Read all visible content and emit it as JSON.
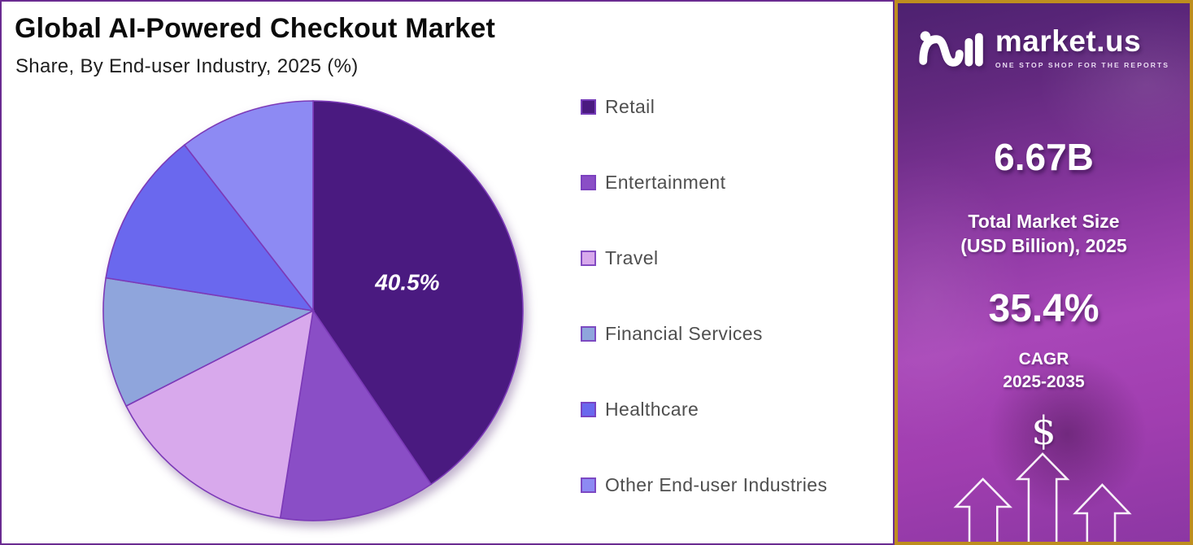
{
  "header": {
    "title": "Global AI-Powered Checkout Market",
    "subtitle": "Share, By End-user Industry, 2025 (%)"
  },
  "chart_data": {
    "type": "pie",
    "title": "Global AI-Powered Checkout Market Share, By End-user Industry, 2025 (%)",
    "unit": "percent",
    "direction": "clockwise",
    "start_angle_deg": 0,
    "legend_position": "right",
    "slices": [
      {
        "label": "Retail",
        "value": 40.5,
        "color": "#4A1A80",
        "data_label": "40.5%"
      },
      {
        "label": "Entertainment",
        "value": 12.0,
        "color": "#8A4EC6"
      },
      {
        "label": "Travel",
        "value": 15.0,
        "color": "#D8A9EC"
      },
      {
        "label": "Financial Services",
        "value": 10.0,
        "color": "#8FA5DC"
      },
      {
        "label": "Healthcare",
        "value": 12.0,
        "color": "#6A68EE"
      },
      {
        "label": "Other End-user Industries",
        "value": 10.5,
        "color": "#8D8AF3"
      }
    ]
  },
  "sidebar": {
    "logo": {
      "name": "market.us",
      "tagline": "ONE STOP SHOP FOR THE REPORTS"
    },
    "stats": [
      {
        "value": "6.67B",
        "label_lines": [
          "Total Market Size",
          "(USD Billion), 2025"
        ]
      },
      {
        "value": "35.4%",
        "label_lines": [
          "CAGR",
          "2025-2035"
        ]
      }
    ],
    "dollar_symbol": "$"
  },
  "colors": {
    "main_border": "#6A2B91",
    "slice_stroke": "#7C3AB8",
    "legend_text": "#4F4F4F",
    "sidebar_border": "#BE8E1E",
    "sidebar_purple": "#A846B8",
    "text_on_sidebar": "#FFFFFF"
  }
}
